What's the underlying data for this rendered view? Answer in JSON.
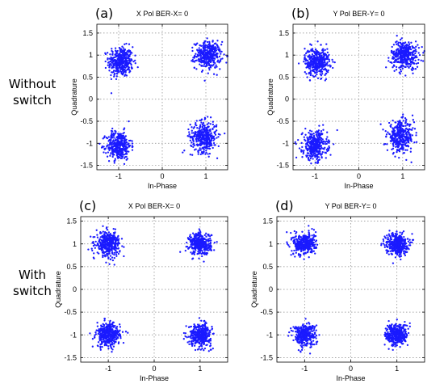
{
  "row_labels": [
    {
      "line1": "Without",
      "line2": "switch"
    },
    {
      "line1": "With",
      "line2": "switch"
    }
  ],
  "chart_data": [
    {
      "type": "scatter",
      "panel_label": "(a)",
      "title": "X Pol   BER-X= 0",
      "xlabel": "In-Phase",
      "ylabel": "Quadrature",
      "xlim": [
        -1.5,
        1.5
      ],
      "ylim": [
        -1.6,
        1.7
      ],
      "xticks": [
        -1,
        0,
        1
      ],
      "yticks": [
        1.5,
        1,
        0.5,
        0,
        -0.5,
        -1,
        -1.5
      ],
      "grid": true,
      "marker_color": "#1a1aff",
      "clusters": [
        {
          "center": [
            -0.95,
            0.85
          ],
          "spread": [
            0.14,
            0.17
          ]
        },
        {
          "center": [
            1.05,
            1.0
          ],
          "spread": [
            0.15,
            0.15
          ]
        },
        {
          "center": [
            -1.0,
            -1.05
          ],
          "spread": [
            0.14,
            0.16
          ]
        },
        {
          "center": [
            0.95,
            -0.85
          ],
          "spread": [
            0.15,
            0.17
          ]
        }
      ]
    },
    {
      "type": "scatter",
      "panel_label": "(b)",
      "title": "Y Pol   BER-Y= 0",
      "xlabel": "In-Phase",
      "ylabel": "Quadrature",
      "xlim": [
        -1.5,
        1.5
      ],
      "ylim": [
        -1.6,
        1.7
      ],
      "xticks": [
        -1,
        0,
        1
      ],
      "yticks": [
        1.5,
        1,
        0.5,
        0,
        -0.5,
        -1,
        -1.5
      ],
      "grid": true,
      "marker_color": "#1a1aff",
      "clusters": [
        {
          "center": [
            -0.95,
            0.85
          ],
          "spread": [
            0.14,
            0.16
          ]
        },
        {
          "center": [
            1.05,
            1.0
          ],
          "spread": [
            0.16,
            0.16
          ]
        },
        {
          "center": [
            -1.0,
            -1.05
          ],
          "spread": [
            0.14,
            0.16
          ]
        },
        {
          "center": [
            0.95,
            -0.85
          ],
          "spread": [
            0.15,
            0.17
          ]
        }
      ]
    },
    {
      "type": "scatter",
      "panel_label": "(c)",
      "title": "X Pol   BER-X= 0",
      "xlabel": "In-Phase",
      "ylabel": "Quadrature",
      "xlim": [
        -1.6,
        1.6
      ],
      "ylim": [
        -1.6,
        1.6
      ],
      "xticks": [
        -1,
        0,
        1
      ],
      "yticks": [
        1.5,
        1,
        0.5,
        0,
        -0.5,
        -1,
        -1.5
      ],
      "grid": true,
      "marker_color": "#1a1aff",
      "clusters": [
        {
          "center": [
            -1.0,
            1.0
          ],
          "spread": [
            0.13,
            0.13
          ]
        },
        {
          "center": [
            1.0,
            1.0
          ],
          "spread": [
            0.12,
            0.12
          ]
        },
        {
          "center": [
            -1.0,
            -1.0
          ],
          "spread": [
            0.13,
            0.13
          ]
        },
        {
          "center": [
            1.0,
            -1.0
          ],
          "spread": [
            0.12,
            0.12
          ]
        }
      ]
    },
    {
      "type": "scatter",
      "panel_label": "(d)",
      "title": "Y Pol   BER-Y= 0",
      "xlabel": "In-Phase",
      "ylabel": "Quadrature",
      "xlim": [
        -1.6,
        1.6
      ],
      "ylim": [
        -1.6,
        1.6
      ],
      "xticks": [
        -1,
        0,
        1
      ],
      "yticks": [
        1.5,
        1,
        0.5,
        0,
        -0.5,
        -1,
        -1.5
      ],
      "grid": true,
      "marker_color": "#1a1aff",
      "clusters": [
        {
          "center": [
            -1.0,
            1.0
          ],
          "spread": [
            0.12,
            0.12
          ]
        },
        {
          "center": [
            1.0,
            1.0
          ],
          "spread": [
            0.12,
            0.12
          ]
        },
        {
          "center": [
            -1.0,
            -1.0
          ],
          "spread": [
            0.12,
            0.12
          ]
        },
        {
          "center": [
            1.0,
            -1.0
          ],
          "spread": [
            0.12,
            0.12
          ]
        }
      ]
    }
  ]
}
